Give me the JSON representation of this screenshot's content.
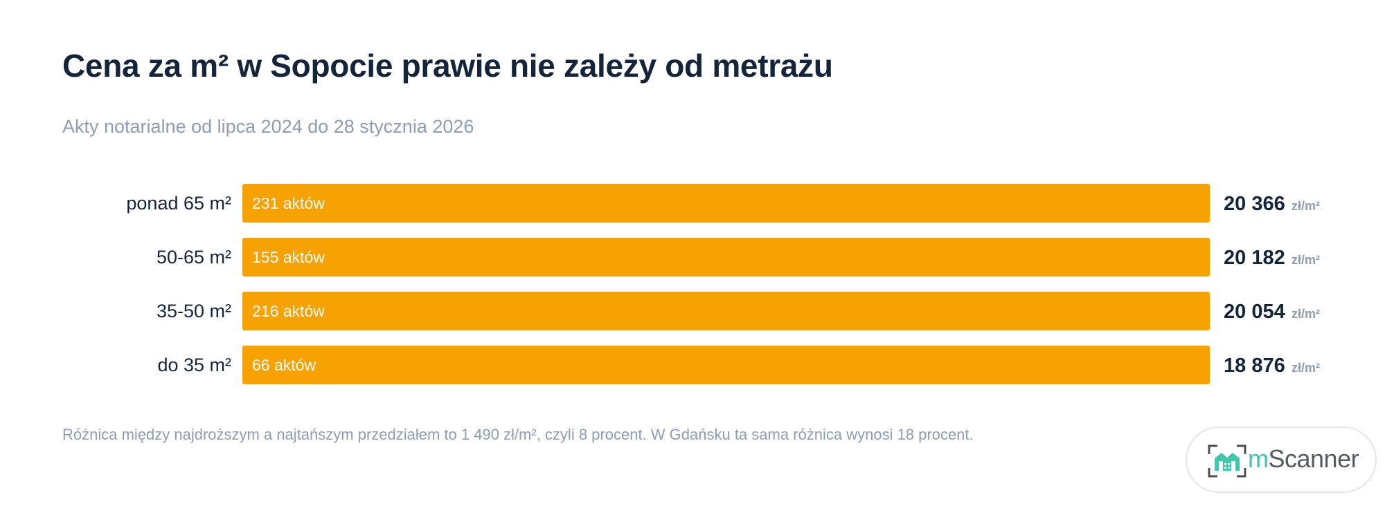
{
  "title": "Cena za m² w Sopocie prawie nie zależy od metrażu",
  "subtitle": "Akty notarialne od lipca 2024 do 28 stycznia 2026",
  "footnote": "Różnica między najdroższym a najtańszym przedziałem to 1 490 zł/m², czyli 8 procent. W Gdańsku ta sama różnica wynosi 18 procent.",
  "logo": {
    "text_accent": "m",
    "text_rest": "Scanner"
  },
  "colors": {
    "bar": "#f5a202",
    "title": "#14243b",
    "muted": "#8d9db3",
    "logo_accent": "#3fc6ac"
  },
  "chart_data": {
    "type": "bar",
    "orientation": "horizontal",
    "categories": [
      "ponad 65 m²",
      "50-65 m²",
      "35-50 m²",
      "do 35 m²"
    ],
    "values": [
      20366,
      20182,
      20054,
      18876
    ],
    "value_labels": [
      "20 366",
      "20 182",
      "20 054",
      "18 876"
    ],
    "value_unit": "zł/m²",
    "bar_labels": [
      "231 aktów",
      "155 aktów",
      "216 aktów",
      "66 aktów"
    ],
    "title": "Cena za m² w Sopocie prawie nie zależy od metrażu",
    "subtitle": "Akty notarialne od lipca 2024 do 28 stycznia 2026"
  }
}
